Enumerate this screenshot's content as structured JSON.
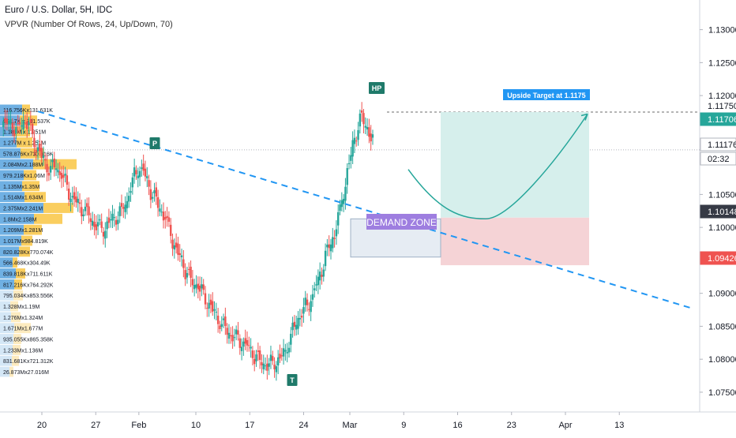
{
  "header": {
    "title": "Euro / U.S. Dollar, 5H, IDC",
    "indicator": "VPVR (Number Of Rows, 24, Up/Down, 70)"
  },
  "colors": {
    "bull": "#26a69a",
    "bear": "#ef5350",
    "trendline": "#2196f3",
    "vp_up": "#5fa7e0",
    "vp_down": "#f9c94e",
    "vp_up_faded": "#cfe4f5",
    "vp_down_faded": "#fde9b8",
    "target_fill": "#d6efec",
    "stop_fill": "#f5d3d6",
    "demand_fill": "#e6ecf3",
    "label_purple": "#9e7ee0",
    "marker_green": "#1f7a6a",
    "target_label": "#2196f3"
  },
  "chart_data": {
    "type": "candlestick",
    "symbol": "EUR/USD",
    "ylim": [
      1.072,
      1.1345
    ],
    "y_ticks": [
      "1.13000",
      "1.12500",
      "1.12000",
      "1.10500",
      "1.10000",
      "1.09000",
      "1.08500",
      "1.08000",
      "1.07500"
    ],
    "x_ticks": [
      "20",
      "27",
      "Feb",
      "10",
      "17",
      "24",
      "Mar",
      "9",
      "16",
      "23",
      "Apr",
      "13"
    ],
    "price_labels": [
      {
        "text": "1.11750",
        "value": 1.1175,
        "style": "dashed"
      },
      {
        "text": "1.11706",
        "value": 1.11706,
        "style": "bull"
      },
      {
        "text": "1.11176",
        "value": 1.11176,
        "style": "outline"
      },
      {
        "text": "02:32",
        "value": 1.1093,
        "style": "outline"
      },
      {
        "text": "1.10148",
        "value": 1.10148,
        "style": "dark"
      },
      {
        "text": "1.09426",
        "value": 1.09426,
        "style": "bear"
      }
    ],
    "volume_profile_labels": [
      "116.756Kx131.631K",
      "601.7K x 731.537K",
      "1.183M x 1.251M",
      "1.277M x 1.251M",
      "578.876Kx730.616K",
      "2.084Mx2.188M",
      "979.218Kx1.06M",
      "1.135Mx1.35M",
      "1.514Mx1.634M",
      "2.375Mx2.241M",
      "1.8Mx2.158M",
      "1.209Mx1.281M",
      "1.017Mx984.819K",
      "820.828Kx770.074K",
      "566.468Kx304.49K",
      "839.818Kx711.611K",
      "817.216Kx764.292K",
      "795.034Kx853.556K",
      "1.328Mx1.19M",
      "1.276Mx1.324M",
      "1.671Mx1.677M",
      "935.055Kx865.358K",
      "1.233Mx1.136M",
      "831.681Kx721.312K",
      "26.873Mx27.016M"
    ],
    "volume_profile_up": [
      0.28,
      0.25,
      0.18,
      0.21,
      0.26,
      0.42,
      0.3,
      0.28,
      0.31,
      0.55,
      0.43,
      0.3,
      0.27,
      0.24,
      0.16,
      0.2,
      0.18,
      0.17,
      0.13,
      0.14,
      0.18,
      0.17,
      0.16,
      0.15,
      0.12
    ],
    "volume_profile_down": [
      0.1,
      0.22,
      0.2,
      0.2,
      0.3,
      0.55,
      0.16,
      0.22,
      0.27,
      0.38,
      0.36,
      0.23,
      0.14,
      0.14,
      0.06,
      0.12,
      0.1,
      0.12,
      0.1,
      0.12,
      0.21,
      0.1,
      0.1,
      0.09,
      0.05
    ],
    "markers": [
      {
        "label": "P",
        "value": 1.1137,
        "x_day": 32.6
      },
      {
        "label": "HP",
        "value": 1.1201,
        "x_day": 60.8
      },
      {
        "label": "T",
        "value": 1.0762,
        "x_day": 52.8
      }
    ],
    "annotations": {
      "demand_zone_label": "DEMAND ZONE",
      "target_label": "Upside Target at 1.1175",
      "demand_zone": [
        1.0955,
        1.1013
      ],
      "target_zone": [
        1.10148,
        1.1175
      ],
      "stop_zone": [
        1.09426,
        1.10148
      ]
    },
    "trendline": {
      "from": [
        -0.5,
        1.1176
      ],
      "to": [
        84.5,
        1.0877
      ]
    },
    "projection": {
      "from": [
        66.3,
        1.1088
      ],
      "trough": [
        76.5,
        1.1013
      ],
      "to": [
        91.5,
        1.1172
      ]
    },
    "ohlc_sequence": [
      1.1152,
      1.1162,
      1.1145,
      1.1168,
      1.115,
      1.112,
      1.111,
      1.1095,
      1.1082,
      1.109,
      1.1075,
      1.106,
      1.104,
      1.103,
      1.102,
      1.1015,
      1.1005,
      1.1,
      1.0995,
      1.101,
      1.102,
      1.103,
      1.105,
      1.1075,
      1.1095,
      1.1085,
      1.106,
      1.104,
      1.102,
      1.1005,
      1.0985,
      1.096,
      1.0945,
      1.092,
      1.0905,
      1.0915,
      1.0895,
      1.088,
      1.086,
      1.085,
      1.0845,
      1.0838,
      1.083,
      1.082,
      1.0815,
      1.081,
      1.08,
      1.079,
      1.0785,
      1.0795,
      1.0805,
      1.082,
      1.084,
      1.086,
      1.0875,
      1.089,
      1.0905,
      1.0925,
      1.095,
      1.098,
      1.1,
      1.104,
      1.108,
      1.112,
      1.116,
      1.118,
      1.115,
      1.112
    ]
  }
}
